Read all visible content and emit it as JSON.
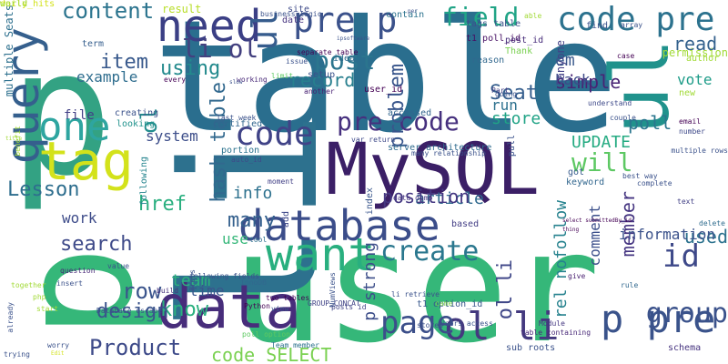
{
  "words": [
    {
      "t": "table",
      "c": "#2a6e8e"
    },
    {
      "t": "p",
      "c": "#33a283"
    },
    {
      "t": "user",
      "c": "#35b779"
    },
    {
      "t": "li",
      "c": "#2d718e"
    },
    {
      "t": "p",
      "c": "#35b779"
    },
    {
      "t": "MySQL",
      "c": "#3b1f66"
    },
    {
      "t": "database",
      "c": "#3b4d8a"
    },
    {
      "t": "data",
      "c": "#472d7b"
    },
    {
      "t": "want",
      "c": "#29af7f"
    },
    {
      "t": "tag",
      "c": "#d3e21b"
    },
    {
      "t": "need",
      "c": "#3b3f85"
    },
    {
      "t": "query",
      "c": "#355f8d"
    },
    {
      "t": "one",
      "c": "#2ea5a0"
    },
    {
      "t": "pre p",
      "c": "#3b528b"
    },
    {
      "t": "ul",
      "c": "#365c8d"
    },
    {
      "t": "code pre",
      "c": "#2c728e"
    },
    {
      "t": "pre code",
      "c": "#46307e"
    },
    {
      "t": "ol li",
      "c": "#44397f"
    },
    {
      "t": "li ol",
      "c": "#43407f"
    },
    {
      "t": "ul",
      "c": "#20928c"
    },
    {
      "t": "p pre",
      "c": "#3a538b"
    },
    {
      "t": "group",
      "c": "#3b528b"
    },
    {
      "t": "id",
      "c": "#3e4989"
    },
    {
      "t": "Product",
      "c": "#3d4a89"
    },
    {
      "t": "code SELECT",
      "c": "#7ad151"
    },
    {
      "t": "page",
      "c": "#3c4f8a"
    },
    {
      "t": "create",
      "c": "#2a778e"
    },
    {
      "t": "field",
      "c": "#20a486"
    },
    {
      "t": "content",
      "c": "#2b748e"
    },
    {
      "t": "post",
      "c": "#2b758e"
    },
    {
      "t": "using",
      "c": "#238a8d"
    },
    {
      "t": "item",
      "c": "#38598c"
    },
    {
      "t": "ol",
      "c": "#228d8d"
    },
    {
      "t": "code",
      "c": "#404387"
    },
    {
      "t": "will",
      "c": "#5dc863"
    },
    {
      "t": "UPDATE",
      "c": "#25ab82"
    },
    {
      "t": "Lesson",
      "c": "#2e6e8e"
    },
    {
      "t": "many",
      "c": "#34608d"
    },
    {
      "t": "row",
      "c": "#3a548c"
    },
    {
      "t": "know",
      "c": "#2ab07f"
    },
    {
      "t": "design",
      "c": "#3a548c"
    },
    {
      "t": "search",
      "c": "#3e4a89"
    },
    {
      "t": "href",
      "c": "#29af7f"
    },
    {
      "t": "hash table",
      "c": "#31688e"
    },
    {
      "t": "Seat",
      "c": "#355e8d"
    },
    {
      "t": "problem",
      "c": "#39568c"
    },
    {
      "t": "read",
      "c": "#34618d"
    },
    {
      "t": "vote",
      "c": "#1e9c89"
    },
    {
      "t": "p strong",
      "c": "#3d4e8a"
    },
    {
      "t": "ol li",
      "c": "#3f4788"
    },
    {
      "t": "rel nofollow",
      "c": "#26828e"
    },
    {
      "t": "used",
      "c": "#2c728e"
    },
    {
      "t": "record",
      "c": "#277f8e"
    },
    {
      "t": "article",
      "c": "#30698e"
    },
    {
      "t": "position",
      "c": "#453882"
    },
    {
      "t": "info",
      "c": "#2d718e"
    },
    {
      "t": "member",
      "c": "#453581"
    },
    {
      "t": "simple",
      "c": "#482374"
    },
    {
      "t": "back",
      "c": "#3e4a89"
    },
    {
      "t": "poll",
      "c": "#2a768e"
    },
    {
      "t": "em",
      "c": "#38588c"
    },
    {
      "t": "store",
      "c": "#20a386"
    },
    {
      "t": "run",
      "c": "#2d718e"
    },
    {
      "t": "system",
      "c": "#3d4e8a"
    },
    {
      "t": "team",
      "c": "#2db27d"
    },
    {
      "t": "work",
      "c": "#3e4c8a"
    },
    {
      "t": "time",
      "c": "#39568c"
    },
    {
      "t": "use",
      "c": "#35b779"
    },
    {
      "t": "comment",
      "c": "#3c508b"
    },
    {
      "t": "example",
      "c": "#2e6d8e"
    },
    {
      "t": "file",
      "c": "#424086"
    },
    {
      "t": "information",
      "c": "#3b528b"
    },
    {
      "t": "got",
      "c": "#375b8d"
    },
    {
      "t": "keyword",
      "c": "#31668e"
    },
    {
      "t": "multiple Seats",
      "c": "#2d708e"
    },
    {
      "t": "tags table",
      "c": "#3b528b"
    },
    {
      "t": "t1 poll_id",
      "c": "#471164"
    },
    {
      "t": "post_id",
      "c": "#472c7a"
    },
    {
      "t": "Thank",
      "c": "#7ad151"
    },
    {
      "t": "reason",
      "c": "#31688e"
    },
    {
      "t": "anyone",
      "c": "#424086"
    },
    {
      "t": "permission",
      "c": "#a2da37"
    },
    {
      "t": "author",
      "c": "#a2da37"
    },
    {
      "t": "new",
      "c": "#a2da37"
    },
    {
      "t": "result",
      "c": "#b8de29"
    },
    {
      "t": "contain",
      "c": "#2c738e"
    },
    {
      "t": "date",
      "c": "#46337f"
    },
    {
      "t": "site",
      "c": "#3e4a89"
    },
    {
      "t": "term",
      "c": "#355e8d"
    },
    {
      "t": "creating",
      "c": "#3b528b"
    },
    {
      "t": "looking",
      "c": "#20928c"
    },
    {
      "t": "accessed",
      "c": "#32658e"
    },
    {
      "t": "last week",
      "c": "#3b528b"
    },
    {
      "t": "certified",
      "c": "#31668e"
    },
    {
      "t": "var return",
      "c": "#3e4989"
    },
    {
      "t": "server architecture",
      "c": "#2f6b8e"
    },
    {
      "t": "portion",
      "c": "#2c738e"
    },
    {
      "t": "many relationship",
      "c": "#3b528b"
    },
    {
      "t": "auto_id",
      "c": "#3e4a89"
    },
    {
      "t": "data dump",
      "c": "#463480"
    },
    {
      "t": "based",
      "c": "#433e85"
    },
    {
      "t": "pull",
      "c": "#3b528b"
    },
    {
      "t": "user_id",
      "c": "#440154"
    },
    {
      "t": "idea",
      "c": "#2f6c8e"
    },
    {
      "t": "setup",
      "c": "#3b528b"
    },
    {
      "t": "working",
      "c": "#482878"
    },
    {
      "t": "another",
      "c": "#482173"
    },
    {
      "t": "every",
      "c": "#440154"
    },
    {
      "t": "moment",
      "c": "#424086"
    },
    {
      "t": "tool",
      "c": "#2e6f8e"
    },
    {
      "t": "add",
      "c": "#3e4989"
    },
    {
      "t": "following",
      "c": "#25848e"
    },
    {
      "t": "value",
      "c": "#3b528b"
    },
    {
      "t": "question",
      "c": "#482878"
    },
    {
      "t": "build",
      "c": "#46327e"
    },
    {
      "t": "two tables",
      "c": "#440154"
    },
    {
      "t": "InnoDB",
      "c": "#31688e"
    },
    {
      "t": "Python",
      "c": "#440154"
    },
    {
      "t": "GROUP_CONCAT",
      "c": "#414487"
    },
    {
      "t": "view",
      "c": "#3b528b"
    },
    {
      "t": "posts id",
      "c": "#414487"
    },
    {
      "t": "NumViews",
      "c": "#3b528b"
    },
    {
      "t": "index",
      "c": "#39568c"
    },
    {
      "t": "t1 option_id",
      "c": "#38588c"
    },
    {
      "t": "stored",
      "c": "#3b528b"
    },
    {
      "t": "li retrieve",
      "c": "#3b528b"
    },
    {
      "t": "came",
      "c": "#7ad151"
    },
    {
      "t": "Users access",
      "c": "#3b528b"
    },
    {
      "t": "Team member",
      "c": "#2c728e"
    },
    {
      "t": "sub roots",
      "c": "#3b528b"
    },
    {
      "t": "schema",
      "c": "#46337f"
    },
    {
      "t": "poll option",
      "c": "#5ec962"
    },
    {
      "t": "table containing",
      "c": "#482878"
    },
    {
      "t": "Module",
      "c": "#453882"
    },
    {
      "t": "rule",
      "c": "#31688e"
    },
    {
      "t": "give",
      "c": "#481f70"
    },
    {
      "t": "delete",
      "c": "#2f6c8e"
    },
    {
      "t": "text",
      "c": "#424086"
    },
    {
      "t": "best way",
      "c": "#3b528b"
    },
    {
      "t": "complete",
      "c": "#3b528b"
    },
    {
      "t": "multiple rows",
      "c": "#3b528b"
    },
    {
      "t": "email",
      "c": "#440154"
    },
    {
      "t": "number",
      "c": "#3e4989"
    },
    {
      "t": "couple",
      "c": "#3b528b"
    },
    {
      "t": "case",
      "c": "#440154"
    },
    {
      "t": "find",
      "c": "#3b528b"
    },
    {
      "t": "array",
      "c": "#3b528b"
    },
    {
      "t": "understand",
      "c": "#3e4989"
    },
    {
      "t": "going",
      "c": "#3b528b"
    },
    {
      "t": "Part",
      "c": "#424086"
    },
    {
      "t": "already",
      "c": "#3b528b"
    },
    {
      "t": "together",
      "c": "#a2da37"
    },
    {
      "t": "Database escape",
      "c": "#3b528b"
    },
    {
      "t": "insert",
      "c": "#3b528b"
    },
    {
      "t": "php",
      "c": "#a2da37"
    },
    {
      "t": "start",
      "c": "#a2da37"
    },
    {
      "t": "trying",
      "c": "#3b528b"
    },
    {
      "t": "worry",
      "c": "#3b528b"
    },
    {
      "t": "following fields",
      "c": "#3b528b"
    },
    {
      "t": "Frobs",
      "c": "#3b528b"
    },
    {
      "t": "limit",
      "c": "#5ec962"
    },
    {
      "t": "separate table",
      "c": "#440154"
    },
    {
      "t": "issue",
      "c": "#3b528b"
    },
    {
      "t": "slow",
      "c": "#3b528b"
    },
    {
      "t": "ipsoftware",
      "c": "#3b528b"
    },
    {
      "t": "business logic",
      "c": "#3b528b"
    },
    {
      "t": "per",
      "c": "#3b528b"
    },
    {
      "t": "able",
      "c": "#a2da37"
    },
    {
      "t": "benefit",
      "c": "#a2da37"
    },
    {
      "t": "title",
      "c": "#a2da37"
    },
    {
      "t": "select submittedBy_id",
      "c": "#440154"
    },
    {
      "t": "thing",
      "c": "#440154"
    },
    {
      "t": "Edit",
      "c": "#d3e21b"
    },
    {
      "t": "daily_hits",
      "c": "#d3e21b"
    },
    {
      "t": "world",
      "c": "#a2da37"
    }
  ]
}
